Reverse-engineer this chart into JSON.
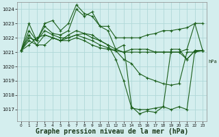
{
  "title": "Graphe pression niveau de la mer (hPa)",
  "background_color": "#d4eeee",
  "grid_color": "#b0d8d8",
  "line_color": "#1a5e1a",
  "ylim": [
    1016.2,
    1024.5
  ],
  "xlim": [
    -0.5,
    23.5
  ],
  "yticks": [
    1017,
    1018,
    1019,
    1020,
    1021,
    1022,
    1023,
    1024
  ],
  "xticks": [
    0,
    1,
    2,
    3,
    4,
    5,
    6,
    7,
    8,
    9,
    10,
    11,
    12,
    13,
    14,
    15,
    16,
    17,
    18,
    19,
    20,
    21,
    22,
    23
  ],
  "series": [
    [
      1021.1,
      1023.0,
      1021.8,
      1023.0,
      1023.2,
      1022.5,
      1023.0,
      1024.3,
      1023.7,
      1023.5,
      1022.8,
      1022.8,
      1022.0,
      1022.0,
      1022.0,
      1022.0,
      1022.2,
      1022.3,
      1022.5,
      1022.5,
      1022.6,
      1022.7,
      1023.0,
      1023.0
    ],
    [
      1021.1,
      1022.2,
      1021.5,
      1022.2,
      1022.0,
      1021.8,
      1021.8,
      1022.0,
      1021.8,
      1021.5,
      1021.3,
      1021.2,
      1021.1,
      1021.0,
      1021.0,
      1021.0,
      1021.0,
      1021.0,
      1021.0,
      1021.0,
      1021.0,
      1021.2,
      1023.0,
      1021.1
    ],
    [
      1021.1,
      1021.5,
      1022.0,
      1022.2,
      1022.0,
      1021.8,
      1022.0,
      1022.2,
      1022.0,
      1021.8,
      1021.5,
      1021.3,
      1021.1,
      1020.5,
      1020.2,
      1019.5,
      1019.2,
      1019.0,
      1018.8,
      1018.7,
      1018.8,
      1021.0,
      1021.0,
      1021.1
    ],
    [
      1021.1,
      1021.8,
      1021.5,
      1021.5,
      1022.0,
      1021.8,
      1022.2,
      1022.5,
      1022.3,
      1022.2,
      1021.8,
      1021.5,
      1021.2,
      1021.0,
      1021.2,
      1021.2,
      1021.2,
      1021.0,
      1021.0,
      1021.0,
      1021.0,
      1020.5,
      1021.1,
      1021.1
    ],
    [
      1021.1,
      1022.0,
      1021.8,
      1022.5,
      1022.2,
      1022.0,
      1022.0,
      1022.2,
      1022.3,
      1022.0,
      1021.8,
      1021.5,
      1020.5,
      1019.0,
      1017.1,
      1017.0,
      1017.0,
      1017.1,
      1017.2,
      1021.2,
      1021.2,
      1020.5,
      1021.1,
      1021.1
    ],
    [
      1021.1,
      1022.5,
      1021.8,
      1022.8,
      1022.3,
      1022.2,
      1022.5,
      1024.0,
      1023.5,
      1023.8,
      1022.8,
      1022.5,
      1021.2,
      1021.5,
      1017.2,
      1016.7,
      1016.9,
      1016.8,
      1017.2,
      1017.0,
      1017.2,
      1017.0,
      1021.1,
      1021.1
    ]
  ],
  "title_fontsize": 7,
  "tick_fontsize": 5.0
}
